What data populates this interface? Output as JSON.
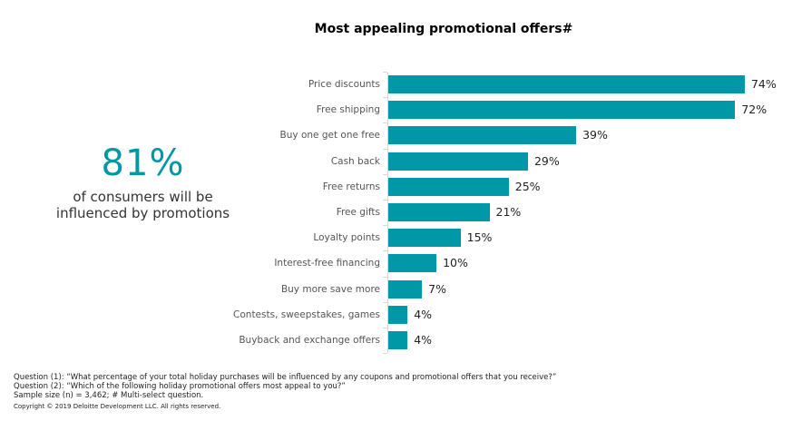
{
  "chart_data": {
    "type": "bar",
    "orientation": "horizontal",
    "title": "Most appealing promotional offers#",
    "xlabel": "",
    "ylabel": "",
    "grid": false,
    "legend": null,
    "xlim": [
      0,
      80
    ],
    "categories": [
      "Price discounts",
      "Free shipping",
      "Buy one get one free",
      "Cash back",
      "Free returns",
      "Free gifts",
      "Loyalty points",
      "Interest-free financing",
      "Buy more save more",
      "Contests, sweepstakes, games",
      "Buyback and exchange offers"
    ],
    "values": [
      74,
      72,
      39,
      29,
      25,
      21,
      15,
      10,
      7,
      4,
      4
    ],
    "value_labels": [
      "74%",
      "72%",
      "39%",
      "29%",
      "25%",
      "21%",
      "15%",
      "10%",
      "7%",
      "4%",
      "4%"
    ],
    "bar_color": "#0097a7"
  },
  "callout": {
    "value": "81%",
    "text_line1": "of consumers will be",
    "text_line2": "influenced by promotions",
    "color": "#0097a7"
  },
  "footnotes": {
    "q1": "Question (1): “What percentage of your total holiday purchases will be influenced by any coupons and promotional offers that you receive?”",
    "q2": "Question (2): “Which of the following holiday promotional offers most appeal to you?”",
    "sample": "Sample size (n) = 3,462; # Multi-select question.",
    "copyright": "Copyright © 2019 Deloitte Development LLC. All rights reserved."
  }
}
